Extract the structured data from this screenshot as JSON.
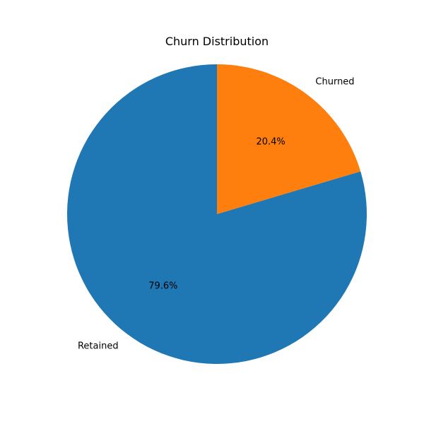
{
  "chart_data": {
    "type": "pie",
    "title": "Churn Distribution",
    "slices": [
      {
        "label": "Churned",
        "value": 20.4,
        "pct_label": "20.4%",
        "color": "#ff7f0e"
      },
      {
        "label": "Retained",
        "value": 79.6,
        "pct_label": "79.6%",
        "color": "#1f77b4"
      }
    ],
    "start_angle_deg": 90,
    "direction": "clockwise",
    "legend": "none"
  }
}
